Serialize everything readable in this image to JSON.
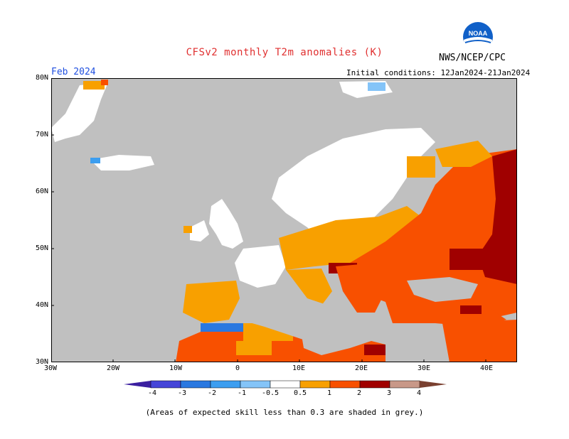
{
  "header": {
    "title": "CFSv2 monthly T2m anomalies (K)",
    "agency": "NWS/NCEP/CPC",
    "logo_text": "NOAA",
    "month": "Feb 2024",
    "initial_conditions": "Initial conditions: 12Jan2024-21Jan2024"
  },
  "axes": {
    "lat_labels": [
      "80N",
      "70N",
      "60N",
      "50N",
      "40N",
      "30N"
    ],
    "lon_labels": [
      "30W",
      "20W",
      "10W",
      "0",
      "10E",
      "20E",
      "30E",
      "40E"
    ],
    "lon_range": [
      -30,
      45
    ],
    "lat_range": [
      30,
      80
    ]
  },
  "colorbar": {
    "labels": [
      "-4",
      "-3",
      "-2",
      "-1",
      "-0.5",
      "0.5",
      "1",
      "2",
      "3",
      "4"
    ],
    "colors": [
      "#3b1fa0",
      "#4545d8",
      "#2a78e0",
      "#3c9ef0",
      "#84c4f8",
      "#ffffff",
      "#f8a000",
      "#f85000",
      "#e82818",
      "#a00000",
      "#c89888",
      "#7a4030"
    ]
  },
  "colors": {
    "ocean_mask": "#c0c0c0",
    "anom_05_1": "#f8a000",
    "anom_1_2": "#f85000",
    "anom_2_3": "#a00000",
    "anom_neg": "#3c9ef0"
  },
  "footer": {
    "note": "(Areas of expected skill less than 0.3 are shaded in grey.)"
  }
}
